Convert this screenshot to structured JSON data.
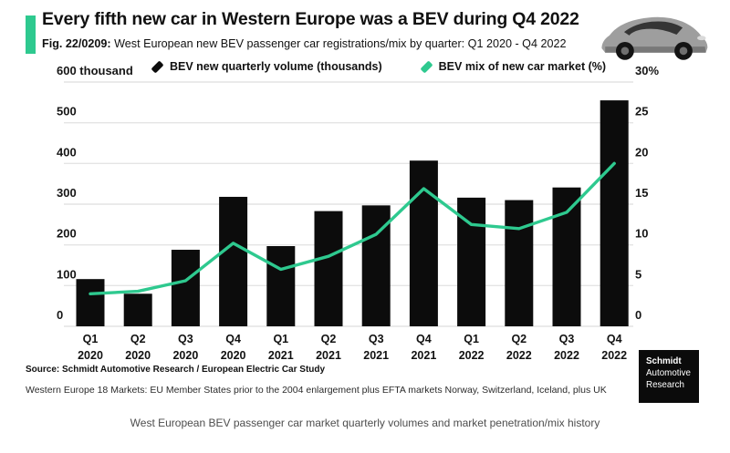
{
  "header": {
    "title": "Every fifth new car in Western Europe was a BEV during Q4 2022",
    "subtitle_prefix": "Fig. 22/0209:",
    "subtitle_rest": " West European new BEV passenger car registrations/mix by quarter: Q1 2020 - Q4 2022",
    "accent_color": "#2ec98f"
  },
  "chart_data": {
    "type": "bar",
    "title": "West European new BEV passenger car registrations/mix by quarter: Q1 2020 - Q4 2022",
    "categories": [
      [
        "Q1",
        "2020"
      ],
      [
        "Q2",
        "2020"
      ],
      [
        "Q3",
        "2020"
      ],
      [
        "Q4",
        "2020"
      ],
      [
        "Q1",
        "2021"
      ],
      [
        "Q2",
        "2021"
      ],
      [
        "Q3",
        "2021"
      ],
      [
        "Q4",
        "2021"
      ],
      [
        "Q1",
        "2022"
      ],
      [
        "Q2",
        "2022"
      ],
      [
        "Q3",
        "2022"
      ],
      [
        "Q4",
        "2022"
      ]
    ],
    "series": [
      {
        "name": "BEV new quarterly volume (thousands)",
        "type": "bar",
        "axis": "left",
        "color": "#0c0c0c",
        "values": [
          116,
          80,
          188,
          318,
          197,
          283,
          297,
          407,
          316,
          310,
          341,
          555
        ]
      },
      {
        "name": "BEV mix of new car market (%)",
        "type": "line",
        "axis": "right",
        "color": "#2ec98f",
        "values": [
          4.0,
          4.3,
          5.6,
          10.2,
          7.0,
          8.6,
          11.3,
          16.9,
          12.5,
          12.0,
          14.0,
          20.0
        ]
      }
    ],
    "left_axis": {
      "min": 0,
      "max": 600,
      "ticks": [
        0,
        100,
        200,
        300,
        400,
        500,
        600
      ],
      "top_label": "600 thousand"
    },
    "right_axis": {
      "min": 0,
      "max": 30,
      "ticks": [
        0,
        5,
        10,
        15,
        20,
        25,
        30
      ],
      "top_label": "30%"
    },
    "grid": true,
    "legend_position": "top-center",
    "grid_color": "#e4e4e4"
  },
  "source": {
    "line1": "Source: Schmidt Automotive Research / European Electric Car Study",
    "line2": "Western Europe 18 Markets: EU Member States prior to the 2004 enlargement plus EFTA markets Norway, Switzerland, Iceland, plus UK"
  },
  "logo": {
    "line1": "Schmidt",
    "line2": "Automotive",
    "line3": "Research"
  },
  "caption": "West European BEV passenger car market quarterly volumes and market penetration/mix history"
}
